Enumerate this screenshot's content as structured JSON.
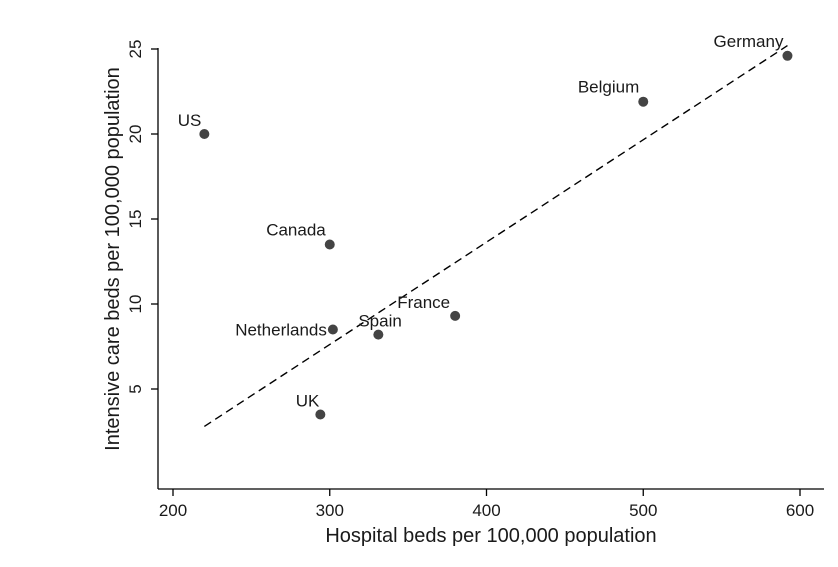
{
  "chart_data": {
    "type": "scatter",
    "xlabel": "Hospital beds per 100,000 population",
    "ylabel": "Intensive care beds per 100,000 population",
    "xlim": [
      190,
      605
    ],
    "ylim": [
      0,
      26
    ],
    "xticks": [
      200,
      300,
      400,
      500,
      600
    ],
    "yticks": [
      5,
      10,
      15,
      20,
      25
    ],
    "grid": false,
    "legend": "none",
    "points": [
      {
        "label": "US",
        "x": 220,
        "y": 20.0
      },
      {
        "label": "Canada",
        "x": 300,
        "y": 13.5
      },
      {
        "label": "Netherlands",
        "x": 302,
        "y": 8.5
      },
      {
        "label": "Spain",
        "x": 331,
        "y": 8.2
      },
      {
        "label": "France",
        "x": 380,
        "y": 9.3
      },
      {
        "label": "UK",
        "x": 294,
        "y": 3.5
      },
      {
        "label": "Belgium",
        "x": 500,
        "y": 21.9
      },
      {
        "label": "Germany",
        "x": 592,
        "y": 24.6
      }
    ],
    "fit_line": {
      "style": "dashed",
      "x": [
        220,
        592
      ],
      "y": [
        2.8,
        25.2
      ]
    },
    "colors": {
      "point": "#444444",
      "line": "#000000",
      "axis": "#000000"
    }
  }
}
